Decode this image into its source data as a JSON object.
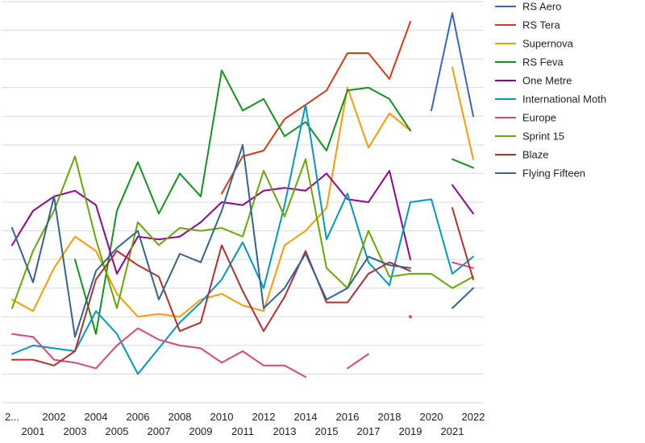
{
  "chart_data": {
    "type": "line",
    "title": "",
    "xlabel": "",
    "ylabel": "",
    "x": [
      "2...",
      2001,
      2002,
      2003,
      2004,
      2005,
      2006,
      2007,
      2008,
      2009,
      2010,
      2011,
      2012,
      2013,
      2014,
      2015,
      2016,
      2017,
      2018,
      2019,
      2020,
      2021,
      2022
    ],
    "ylim": [
      0,
      14
    ],
    "grid": true,
    "legend_position": "right",
    "series": [
      {
        "name": "RS Aero",
        "color": "#3366cc",
        "values": [
          null,
          null,
          null,
          null,
          null,
          null,
          null,
          null,
          null,
          null,
          null,
          null,
          null,
          null,
          null,
          null,
          null,
          null,
          null,
          null,
          10.2,
          13.6,
          10.0
        ]
      },
      {
        "name": "RS Tera",
        "color": "#dc3912",
        "values": [
          null,
          null,
          null,
          null,
          null,
          null,
          null,
          null,
          null,
          null,
          7.3,
          8.6,
          8.8,
          9.9,
          10.4,
          10.9,
          12.2,
          12.2,
          11.3,
          13.3,
          null,
          null,
          null
        ]
      },
      {
        "name": "Supernova",
        "color": "#ff9900",
        "values": [
          3.6,
          3.2,
          4.7,
          5.8,
          5.3,
          3.8,
          3.0,
          3.1,
          3.0,
          3.6,
          3.8,
          3.4,
          3.2,
          5.5,
          6.0,
          6.8,
          11.0,
          8.9,
          10.1,
          9.5,
          null,
          11.7,
          8.5
        ]
      },
      {
        "name": "RS Feva",
        "color": "#109618",
        "values": [
          null,
          null,
          null,
          5.0,
          2.4,
          6.7,
          8.4,
          6.6,
          8.0,
          7.2,
          11.6,
          10.2,
          10.6,
          9.3,
          9.8,
          8.8,
          10.9,
          11.0,
          10.6,
          9.5,
          null,
          8.5,
          8.2
        ]
      },
      {
        "name": "One Metre",
        "color": "#990099",
        "values": [
          5.5,
          6.7,
          7.2,
          7.4,
          6.9,
          4.5,
          5.8,
          5.7,
          5.8,
          6.3,
          7.0,
          6.9,
          7.4,
          7.5,
          7.4,
          8.0,
          7.1,
          7.0,
          8.1,
          5.0,
          null,
          7.6,
          6.6
        ]
      },
      {
        "name": "International Moth",
        "color": "#0099c6",
        "values": [
          1.7,
          2.0,
          1.9,
          1.8,
          3.2,
          2.4,
          1.0,
          1.9,
          2.8,
          3.5,
          4.3,
          5.6,
          4.0,
          6.9,
          10.4,
          5.7,
          7.3,
          4.9,
          4.1,
          7.0,
          7.1,
          4.5,
          5.1
        ]
      },
      {
        "name": "Europe",
        "color": "#dd4477",
        "values": [
          2.4,
          2.3,
          1.5,
          1.4,
          1.2,
          2.0,
          2.6,
          2.2,
          2.0,
          1.9,
          1.4,
          1.8,
          1.3,
          1.3,
          0.9,
          null,
          1.2,
          1.7,
          null,
          3.0,
          null,
          4.9,
          4.7
        ]
      },
      {
        "name": "Sprint 15",
        "color": "#66aa00",
        "values": [
          3.3,
          5.3,
          6.7,
          8.6,
          5.7,
          3.3,
          6.3,
          5.5,
          6.1,
          6.0,
          6.1,
          5.8,
          8.1,
          6.5,
          8.5,
          4.7,
          4.0,
          6.0,
          4.4,
          4.5,
          4.5,
          4.0,
          4.4
        ]
      },
      {
        "name": "Blaze",
        "color": "#b82e2e",
        "values": [
          1.5,
          1.5,
          1.3,
          1.8,
          4.3,
          5.3,
          4.8,
          4.4,
          2.5,
          2.8,
          5.5,
          3.9,
          2.5,
          3.7,
          5.3,
          3.5,
          3.5,
          4.5,
          4.9,
          4.6,
          null,
          6.8,
          4.3
        ]
      },
      {
        "name": "Flying Fifteen",
        "color": "#316395",
        "values": [
          6.1,
          4.2,
          7.2,
          2.3,
          4.6,
          5.4,
          6.0,
          3.6,
          5.2,
          4.9,
          6.7,
          9.0,
          3.3,
          4.0,
          5.2,
          3.6,
          4.0,
          5.1,
          4.8,
          4.7,
          null,
          3.3,
          4.0
        ]
      }
    ]
  }
}
